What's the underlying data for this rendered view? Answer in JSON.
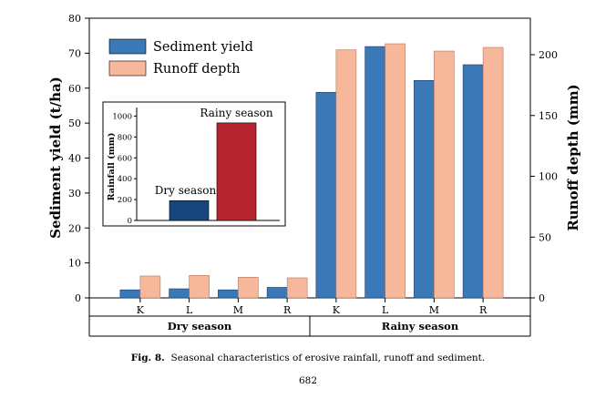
{
  "chart_data": [
    {
      "type": "bar",
      "title": "",
      "categories": [
        "K",
        "L",
        "M",
        "R",
        "K",
        "L",
        "M",
        "R"
      ],
      "groups": [
        "Dry season",
        "Rainy season"
      ],
      "series": [
        {
          "name": "Sediment yield",
          "axis": "left",
          "color": "#3a78b8",
          "values": [
            2.3,
            2.6,
            2.3,
            3.0,
            58.8,
            71.9,
            62.2,
            66.7
          ]
        },
        {
          "name": "Runoff depth",
          "axis": "right",
          "color": "#f7b79b",
          "values": [
            18,
            18.5,
            17,
            16.5,
            204,
            209,
            203,
            206
          ]
        }
      ],
      "ylabel": "Sediment yield (t/ha)",
      "ylim": [
        0,
        80
      ],
      "yticks": [
        0,
        10,
        20,
        30,
        40,
        50,
        60,
        70,
        80
      ],
      "y2label": "Runoff depth (mm)",
      "y2lim": [
        0,
        230
      ],
      "y2ticks": [
        0,
        50,
        100,
        150,
        200
      ],
      "legend": "top-left"
    },
    {
      "type": "bar",
      "title": "",
      "categories": [
        "Dry season",
        "Rainy season"
      ],
      "values": [
        190,
        935
      ],
      "colors": [
        "#18457e",
        "#b5242f"
      ],
      "ylabel": "Rainfall (mm)",
      "ylim": [
        0,
        1100
      ],
      "yticks": [
        0,
        200,
        400,
        600,
        800,
        1000
      ]
    }
  ],
  "caption": {
    "label": "Fig. 8.",
    "text": "Seasonal characteristics of erosive rainfall, runoff and sediment."
  },
  "page_number": "682"
}
